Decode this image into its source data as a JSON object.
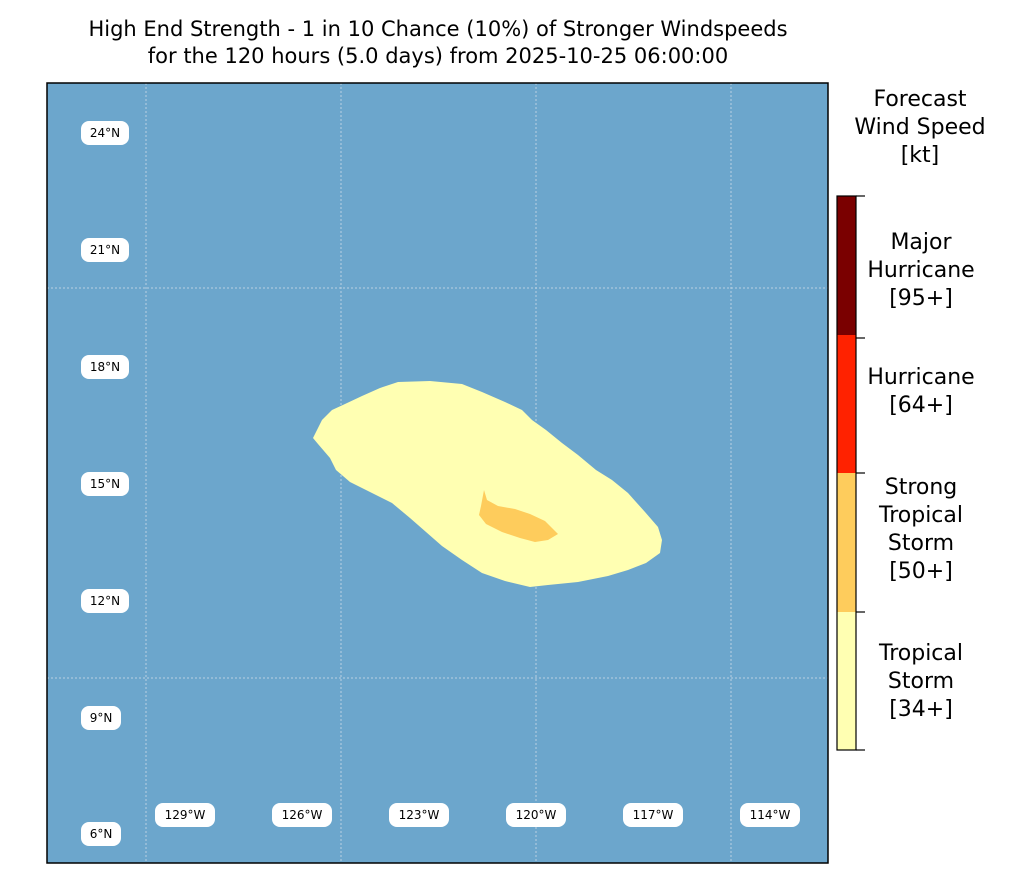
{
  "title": {
    "line1": "High End Strength - 1 in 10 Chance (10%) of Stronger Windspeeds",
    "line2": "for the 120 hours (5.0 days) from 2025-10-25 06:00:00"
  },
  "map": {
    "ocean_color": "#6ca6cc",
    "gridline_color": "#c8d8e6",
    "lat_labels": [
      "24°N",
      "21°N",
      "18°N",
      "15°N",
      "12°N",
      "9°N",
      "6°N"
    ],
    "lon_labels": [
      "129°W",
      "126°W",
      "123°W",
      "120°W",
      "117°W",
      "114°W"
    ],
    "swaths": [
      {
        "category": "Tropical Storm [34+]",
        "color": "#ffffb2"
      },
      {
        "category": "Strong Tropical Storm [50+]",
        "color": "#fecc5c"
      }
    ]
  },
  "colorbar": {
    "title": [
      "Forecast",
      "Wind Speed",
      "[kt]"
    ],
    "categories": [
      {
        "lines": [
          "Major",
          "Hurricane",
          "[95+]"
        ],
        "color": "#7a0000"
      },
      {
        "lines": [
          "Hurricane",
          "[64+]"
        ],
        "color": "#ff2200"
      },
      {
        "lines": [
          "Strong",
          "Tropical",
          "Storm",
          "[50+]"
        ],
        "color": "#fecc5c"
      },
      {
        "lines": [
          "Tropical",
          "Storm",
          "[34+]"
        ],
        "color": "#ffffb2"
      }
    ]
  }
}
